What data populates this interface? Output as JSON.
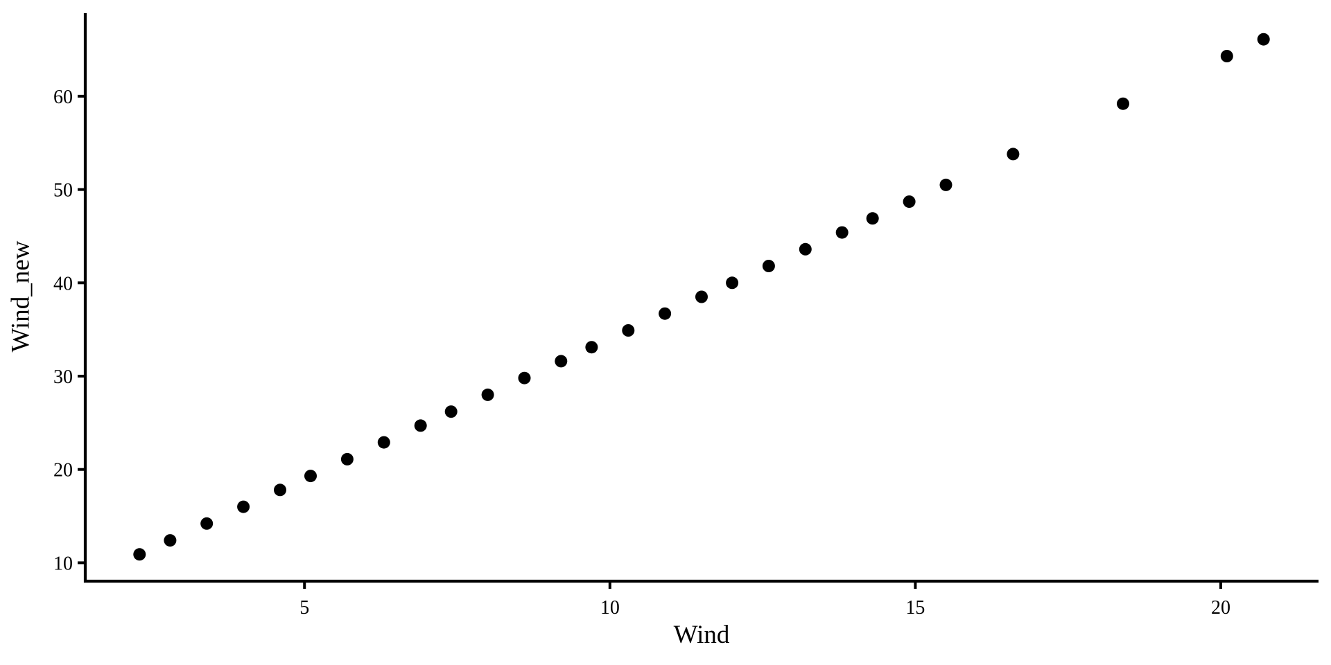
{
  "chart_data": {
    "type": "scatter",
    "xlabel": "Wind",
    "ylabel": "Wind_new",
    "x": [
      2.3,
      2.8,
      3.4,
      4.0,
      4.6,
      5.1,
      5.7,
      6.3,
      6.9,
      7.4,
      8.0,
      8.6,
      9.2,
      9.7,
      10.3,
      10.9,
      11.5,
      12.0,
      12.6,
      13.2,
      13.8,
      14.3,
      14.9,
      15.5,
      16.6,
      18.4,
      20.1,
      20.7
    ],
    "y": [
      10.9,
      12.4,
      14.2,
      16.0,
      17.8,
      19.3,
      21.1,
      22.9,
      24.7,
      26.2,
      28.0,
      29.8,
      31.6,
      33.1,
      34.9,
      36.7,
      38.5,
      40.0,
      41.8,
      43.6,
      45.4,
      46.9,
      48.7,
      50.5,
      53.8,
      59.2,
      64.3,
      66.1
    ],
    "x_ticks": [
      5,
      10,
      15,
      20
    ],
    "y_ticks": [
      10,
      20,
      30,
      40,
      50,
      60
    ],
    "xlim": [
      1.4,
      21.6
    ],
    "ylim": [
      8.1,
      68.9
    ],
    "grid": false,
    "legend_position": "none",
    "theme": "classic",
    "point_color": "#000000",
    "axis_color": "#000000",
    "text_color": "#000000",
    "background_color": "#ffffff",
    "point_radius_px": 9
  }
}
